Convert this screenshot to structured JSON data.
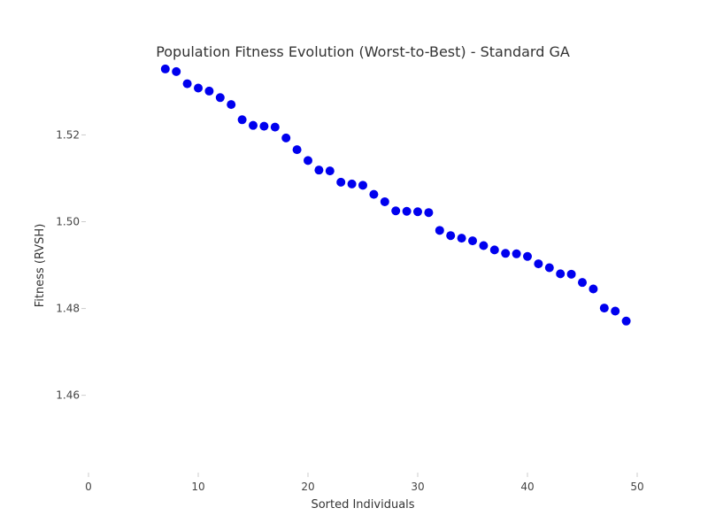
{
  "chart_data": {
    "type": "scatter",
    "title": "Population Fitness Evolution (Worst-to-Best) - Standard GA",
    "xlabel": "Sorted Individuals",
    "ylabel": "Fitness (RVSH)",
    "xlim": [
      0,
      52
    ],
    "ylim": [
      1.443,
      1.536
    ],
    "xticks": [
      0,
      10,
      20,
      30,
      40,
      50
    ],
    "yticks": [
      1.46,
      1.48,
      1.5,
      1.52
    ],
    "ytick_labels": [
      "1.46",
      "1.48",
      "1.50",
      "1.52"
    ],
    "grid": false,
    "marker_color": "#0000ee",
    "series": [
      {
        "x": [
          7,
          8,
          9,
          10,
          11,
          12,
          13,
          14,
          15,
          16,
          17,
          18,
          19,
          20,
          21,
          22,
          23,
          24,
          25,
          26,
          27,
          28,
          29,
          30,
          31,
          32,
          33,
          34,
          35,
          36,
          37,
          38,
          39,
          40,
          41,
          42,
          43,
          44,
          45,
          46,
          47,
          48,
          49
        ],
        "y": [
          1.5352,
          1.5346,
          1.5318,
          1.5308,
          1.5301,
          1.5286,
          1.527,
          1.5235,
          1.5222,
          1.522,
          1.5218,
          1.5193,
          1.5166,
          1.5141,
          1.5119,
          1.5117,
          1.5091,
          1.5087,
          1.5084,
          1.5063,
          1.5046,
          1.5025,
          1.5024,
          1.5023,
          1.5021,
          1.498,
          1.4968,
          1.4962,
          1.4956,
          1.4945,
          1.4935,
          1.4927,
          1.4926,
          1.492,
          1.4903,
          1.4894,
          1.488,
          1.4879,
          1.486,
          1.4845,
          1.4801,
          1.4794,
          1.4771
        ]
      }
    ]
  }
}
